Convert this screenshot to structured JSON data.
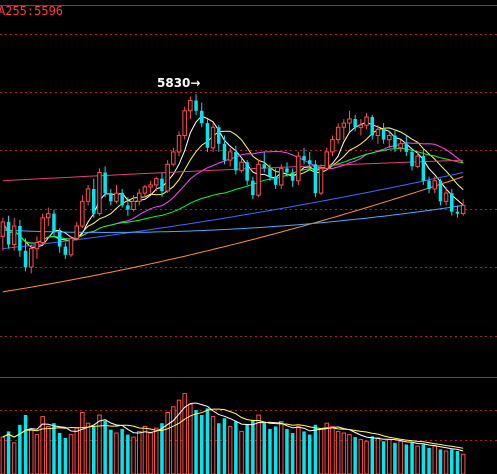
{
  "chart_data": {
    "type": "candlestick",
    "title": "A255:5596",
    "annotation": {
      "text": "5830→",
      "value": 5830
    },
    "colors": {
      "up": "#ff4d4d",
      "down": "#00e5ee",
      "grid": "#b01e1e",
      "border": "#c82020",
      "ma_short": "#ffffff",
      "ma_mid": "#ffff55",
      "ma_20": "#ff44ff",
      "ma_60": "#00ff33",
      "ma_120": "#4466ff",
      "ma_250": "#ff9030",
      "ma_long": "#4aa8ff",
      "flat": "#e0407a"
    },
    "candles": [
      [
        5150,
        5240,
        5080,
        5220
      ],
      [
        5220,
        5250,
        5090,
        5110
      ],
      [
        5110,
        5240,
        5080,
        5200
      ],
      [
        5200,
        5230,
        5050,
        5080
      ],
      [
        5080,
        5140,
        4980,
        5000
      ],
      [
        5000,
        5110,
        4970,
        5090
      ],
      [
        5090,
        5150,
        5040,
        5120
      ],
      [
        5120,
        5260,
        5110,
        5240
      ],
      [
        5240,
        5290,
        5200,
        5260
      ],
      [
        5260,
        5280,
        5150,
        5170
      ],
      [
        5170,
        5190,
        5070,
        5100
      ],
      [
        5100,
        5120,
        5040,
        5060
      ],
      [
        5060,
        5150,
        5050,
        5140
      ],
      [
        5140,
        5220,
        5130,
        5200
      ],
      [
        5200,
        5350,
        5190,
        5320
      ],
      [
        5320,
        5400,
        5300,
        5380
      ],
      [
        5380,
        5430,
        5240,
        5260
      ],
      [
        5260,
        5480,
        5250,
        5460
      ],
      [
        5460,
        5490,
        5340,
        5360
      ],
      [
        5360,
        5380,
        5300,
        5320
      ],
      [
        5320,
        5400,
        5310,
        5360
      ],
      [
        5360,
        5380,
        5290,
        5300
      ],
      [
        5300,
        5340,
        5250,
        5280
      ],
      [
        5280,
        5350,
        5270,
        5320
      ],
      [
        5320,
        5380,
        5300,
        5360
      ],
      [
        5360,
        5400,
        5340,
        5390
      ],
      [
        5390,
        5420,
        5360,
        5400
      ],
      [
        5400,
        5440,
        5370,
        5430
      ],
      [
        5430,
        5460,
        5340,
        5370
      ],
      [
        5370,
        5520,
        5360,
        5500
      ],
      [
        5500,
        5580,
        5490,
        5560
      ],
      [
        5560,
        5660,
        5540,
        5640
      ],
      [
        5640,
        5780,
        5620,
        5760
      ],
      [
        5760,
        5830,
        5720,
        5810
      ],
      [
        5810,
        5840,
        5740,
        5760
      ],
      [
        5760,
        5800,
        5680,
        5700
      ],
      [
        5700,
        5720,
        5560,
        5580
      ],
      [
        5580,
        5700,
        5560,
        5680
      ],
      [
        5680,
        5690,
        5560,
        5600
      ],
      [
        5600,
        5640,
        5500,
        5520
      ],
      [
        5520,
        5580,
        5490,
        5560
      ],
      [
        5560,
        5590,
        5450,
        5470
      ],
      [
        5470,
        5530,
        5460,
        5510
      ],
      [
        5510,
        5520,
        5400,
        5420
      ],
      [
        5420,
        5440,
        5330,
        5350
      ],
      [
        5350,
        5520,
        5340,
        5500
      ],
      [
        5500,
        5560,
        5460,
        5480
      ],
      [
        5480,
        5500,
        5420,
        5440
      ],
      [
        5440,
        5480,
        5380,
        5400
      ],
      [
        5400,
        5500,
        5380,
        5480
      ],
      [
        5480,
        5510,
        5440,
        5460
      ],
      [
        5460,
        5480,
        5390,
        5420
      ],
      [
        5420,
        5560,
        5400,
        5540
      ],
      [
        5540,
        5580,
        5500,
        5520
      ],
      [
        5520,
        5560,
        5470,
        5500
      ],
      [
        5500,
        5520,
        5340,
        5360
      ],
      [
        5360,
        5500,
        5350,
        5480
      ],
      [
        5480,
        5580,
        5470,
        5560
      ],
      [
        5560,
        5640,
        5540,
        5620
      ],
      [
        5620,
        5700,
        5600,
        5680
      ],
      [
        5680,
        5720,
        5620,
        5700
      ],
      [
        5700,
        5760,
        5660,
        5720
      ],
      [
        5720,
        5740,
        5660,
        5680
      ],
      [
        5680,
        5720,
        5640,
        5690
      ],
      [
        5690,
        5750,
        5670,
        5730
      ],
      [
        5730,
        5740,
        5620,
        5640
      ],
      [
        5640,
        5690,
        5600,
        5670
      ],
      [
        5670,
        5700,
        5600,
        5620
      ],
      [
        5620,
        5660,
        5580,
        5640
      ],
      [
        5640,
        5670,
        5560,
        5580
      ],
      [
        5580,
        5620,
        5560,
        5600
      ],
      [
        5600,
        5640,
        5540,
        5560
      ],
      [
        5560,
        5580,
        5470,
        5490
      ],
      [
        5490,
        5560,
        5480,
        5540
      ],
      [
        5540,
        5580,
        5400,
        5420
      ],
      [
        5420,
        5440,
        5360,
        5380
      ],
      [
        5380,
        5440,
        5360,
        5420
      ],
      [
        5420,
        5430,
        5300,
        5320
      ],
      [
        5320,
        5390,
        5300,
        5360
      ],
      [
        5360,
        5380,
        5250,
        5270
      ],
      [
        5270,
        5300,
        5240,
        5260
      ],
      [
        5260,
        5330,
        5250,
        5300
      ]
    ],
    "volume": [
      45,
      52,
      38,
      60,
      72,
      55,
      48,
      70,
      58,
      62,
      50,
      44,
      48,
      56,
      75,
      62,
      58,
      72,
      65,
      54,
      50,
      55,
      48,
      45,
      52,
      58,
      50,
      56,
      62,
      75,
      82,
      90,
      98,
      85,
      78,
      72,
      80,
      70,
      62,
      68,
      58,
      64,
      52,
      60,
      66,
      72,
      62,
      55,
      58,
      64,
      55,
      50,
      58,
      52,
      48,
      60,
      55,
      62,
      58,
      52,
      50,
      48,
      45,
      42,
      40,
      46,
      44,
      40,
      42,
      38,
      40,
      36,
      38,
      34,
      36,
      32,
      34,
      30,
      28,
      30,
      28,
      24
    ],
    "ma_colors": [
      "ma_short",
      "ma_mid",
      "ma_20",
      "ma_60",
      "ma_120",
      "ma_250",
      "ma_long"
    ]
  }
}
